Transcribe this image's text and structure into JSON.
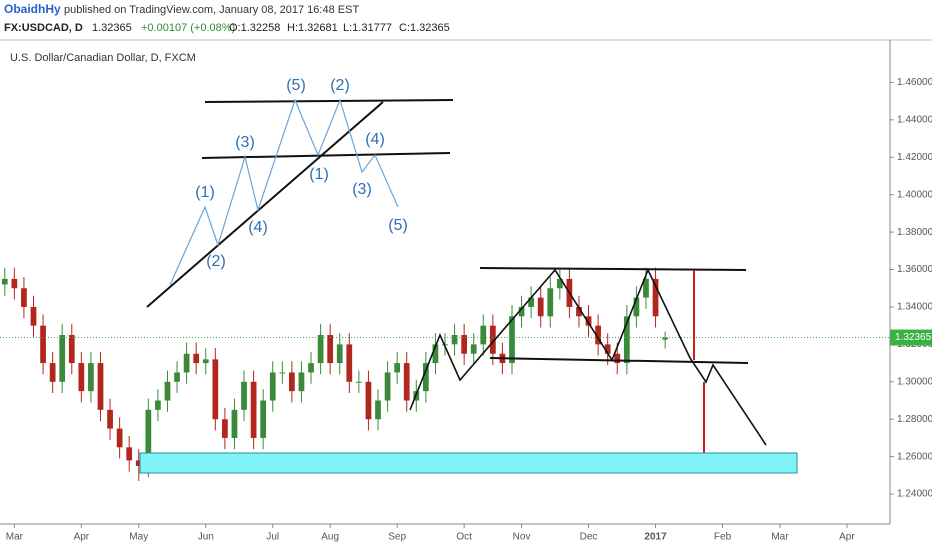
{
  "header": {
    "author": "ObaidhHy",
    "published": "published on TradingView.com, January 08, 2017 16:48 EST",
    "quote": [
      "FX:USDCAD, D",
      "1.32365",
      "+0.00107 (+0.08%)",
      "O:1.32258",
      "H:1.32681",
      "L:1.31777",
      "C:1.32365"
    ]
  },
  "chart_data": {
    "type": "candlestick",
    "title": "U.S. Dollar/Canadian Dollar, D, FXCM",
    "categories": [
      null,
      "Mar",
      null,
      null,
      null,
      null,
      null,
      null,
      "Apr",
      null,
      null,
      null,
      null,
      null,
      "May",
      null,
      null,
      null,
      null,
      null,
      null,
      "Jun",
      null,
      null,
      null,
      null,
      null,
      null,
      "Jul",
      null,
      null,
      null,
      null,
      null,
      "Aug",
      null,
      null,
      null,
      null,
      null,
      null,
      "Sep",
      null,
      null,
      null,
      null,
      null,
      null,
      "Oct",
      null,
      null,
      null,
      null,
      null,
      "Nov",
      null,
      null,
      null,
      null,
      null,
      null,
      "Dec",
      null,
      null,
      null,
      null,
      null,
      null,
      "2017",
      null,
      null,
      null,
      null,
      null,
      null,
      "Feb",
      null,
      null,
      null,
      null,
      null,
      "Mar",
      null,
      null,
      null,
      null,
      null,
      null,
      "Apr",
      null,
      null,
      null,
      null
    ],
    "open": [
      1.352,
      1.355,
      1.35,
      1.34,
      1.33,
      1.31,
      1.3,
      1.325,
      1.31,
      1.295,
      1.31,
      1.285,
      1.275,
      1.265,
      1.258,
      1.255,
      1.285,
      1.29,
      1.3,
      1.305,
      1.315,
      1.31,
      1.312,
      1.28,
      1.27,
      1.285,
      1.3,
      1.27,
      1.29,
      1.305,
      1.305,
      1.295,
      1.305,
      1.31,
      1.325,
      1.31,
      1.32,
      1.3,
      1.3,
      1.28,
      1.29,
      1.305,
      1.31,
      1.29,
      1.295,
      1.31,
      1.32,
      1.32,
      1.325,
      1.315,
      1.32,
      1.33,
      1.315,
      1.31,
      1.335,
      1.34,
      1.345,
      1.335,
      1.35,
      1.355,
      1.34,
      1.335,
      1.33,
      1.32,
      1.315,
      1.31,
      1.335,
      1.345,
      1.355,
      1.32258,
      null,
      null,
      null,
      null,
      null,
      null,
      null,
      null,
      null,
      null,
      null,
      null,
      null,
      null,
      null,
      null,
      null,
      null,
      null,
      null,
      null,
      null,
      null
    ],
    "high": [
      1.361,
      1.361,
      1.356,
      1.346,
      1.336,
      1.316,
      1.331,
      1.331,
      1.316,
      1.316,
      1.316,
      1.291,
      1.281,
      1.271,
      1.264,
      1.291,
      1.296,
      1.306,
      1.311,
      1.321,
      1.321,
      1.318,
      1.318,
      1.286,
      1.291,
      1.306,
      1.306,
      1.296,
      1.311,
      1.311,
      1.311,
      1.311,
      1.316,
      1.331,
      1.331,
      1.326,
      1.326,
      1.306,
      1.306,
      1.296,
      1.311,
      1.316,
      1.316,
      1.301,
      1.316,
      1.326,
      1.326,
      1.331,
      1.331,
      1.326,
      1.336,
      1.336,
      1.321,
      1.341,
      1.346,
      1.351,
      1.351,
      1.356,
      1.361,
      1.361,
      1.346,
      1.341,
      1.336,
      1.326,
      1.321,
      1.341,
      1.351,
      1.361,
      1.361,
      1.32681,
      null,
      null,
      null,
      null,
      null,
      null,
      null,
      null,
      null,
      null,
      null,
      null,
      null,
      null,
      null,
      null,
      null,
      null,
      null,
      null,
      null,
      null,
      null
    ],
    "low": [
      1.346,
      1.344,
      1.334,
      1.324,
      1.304,
      1.294,
      1.294,
      1.304,
      1.289,
      1.289,
      1.279,
      1.269,
      1.259,
      1.252,
      1.247,
      1.249,
      1.279,
      1.284,
      1.294,
      1.299,
      1.304,
      1.304,
      1.274,
      1.264,
      1.264,
      1.279,
      1.264,
      1.264,
      1.284,
      1.299,
      1.289,
      1.289,
      1.299,
      1.304,
      1.304,
      1.304,
      1.294,
      1.294,
      1.274,
      1.274,
      1.284,
      1.299,
      1.284,
      1.284,
      1.289,
      1.304,
      1.314,
      1.314,
      1.309,
      1.309,
      1.314,
      1.309,
      1.304,
      1.304,
      1.329,
      1.334,
      1.329,
      1.329,
      1.344,
      1.334,
      1.329,
      1.324,
      1.314,
      1.309,
      1.304,
      1.304,
      1.329,
      1.339,
      1.329,
      1.31777,
      null,
      null,
      null,
      null,
      null,
      null,
      null,
      null,
      null,
      null,
      null,
      null,
      null,
      null,
      null,
      null,
      null,
      null,
      null,
      null,
      null,
      null,
      null
    ],
    "close": [
      1.355,
      1.35,
      1.34,
      1.33,
      1.31,
      1.3,
      1.325,
      1.31,
      1.295,
      1.31,
      1.285,
      1.275,
      1.265,
      1.258,
      1.255,
      1.285,
      1.29,
      1.3,
      1.305,
      1.315,
      1.31,
      1.312,
      1.28,
      1.27,
      1.285,
      1.3,
      1.27,
      1.29,
      1.305,
      1.305,
      1.295,
      1.305,
      1.31,
      1.325,
      1.31,
      1.32,
      1.3,
      1.3,
      1.28,
      1.29,
      1.305,
      1.31,
      1.29,
      1.295,
      1.31,
      1.32,
      1.32,
      1.325,
      1.315,
      1.32,
      1.33,
      1.315,
      1.31,
      1.335,
      1.34,
      1.345,
      1.335,
      1.35,
      1.355,
      1.34,
      1.335,
      1.33,
      1.32,
      1.315,
      1.31,
      1.335,
      1.345,
      1.355,
      1.335,
      1.32365,
      null,
      null,
      null,
      null,
      null,
      null,
      null,
      null,
      null,
      null,
      null,
      null,
      null,
      null,
      null,
      null,
      null,
      null,
      null,
      null,
      null,
      null,
      null
    ],
    "up_color": "#3b8a3b",
    "down_color": "#b3261e",
    "ylim": [
      1.224,
      1.48
    ],
    "yticks": [
      {
        "value": 1.24,
        "label": "1.24000"
      },
      {
        "value": 1.26,
        "label": "1.26000"
      },
      {
        "value": 1.28,
        "label": "1.28000"
      },
      {
        "value": 1.3,
        "label": "1.30000"
      },
      {
        "value": 1.32,
        "label": "1.32000"
      },
      {
        "value": 1.34,
        "label": "1.34000"
      },
      {
        "value": 1.36,
        "label": "1.36000"
      },
      {
        "value": 1.38,
        "label": "1.38000"
      },
      {
        "value": 1.4,
        "label": "1.40000"
      },
      {
        "value": 1.42,
        "label": "1.42000"
      },
      {
        "value": 1.44,
        "label": "1.44000"
      },
      {
        "value": 1.46,
        "label": "1.46000"
      }
    ],
    "last_price_color": "#3cb043",
    "annotations": [
      "(1)",
      "(2)",
      "(3)",
      "(4)",
      "(5)",
      "(1)",
      "(2)",
      "(3)",
      "(4)",
      "(5)"
    ]
  }
}
